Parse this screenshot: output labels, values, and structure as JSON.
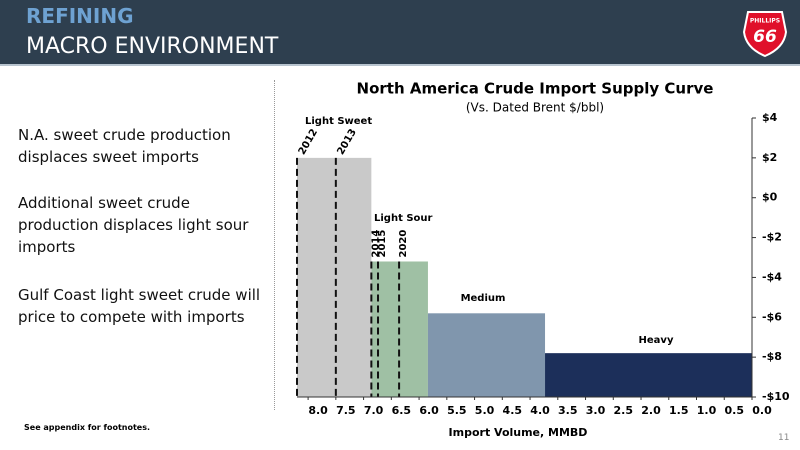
{
  "header": {
    "section": "REFINING",
    "title": "MACRO ENVIRONMENT",
    "logo_top": "PHILLIPS",
    "logo_number": "66"
  },
  "bullets": [
    "N.A. sweet crude production displaces sweet imports",
    "Additional sweet crude production displaces light sour imports",
    "Gulf Coast light sweet crude will price to compete with imports"
  ],
  "footnote": "See appendix for footnotes.",
  "page_number": "11",
  "chart_data": {
    "type": "supply_curve",
    "title": "North America Crude Import Supply Curve",
    "subtitle": "(Vs. Dated Brent $/bbl)",
    "x_label": "Import Volume, MMBD",
    "categories": [
      "Light Sweet",
      "Light Sour",
      "Medium",
      "Heavy"
    ],
    "bins": [
      8.2,
      6.86,
      5.84,
      3.73,
      0
    ],
    "values": [
      2,
      -3.2,
      -5.8,
      -7.8
    ],
    "colors": [
      "#c9c9c9",
      "#9fc0a4",
      "#8096ad",
      "#1c2f5a"
    ],
    "markers": [
      {
        "label": "2012",
        "x": 8.2
      },
      {
        "label": "2013",
        "x": 7.5
      },
      {
        "label": "2014",
        "x": 6.86
      },
      {
        "label": "2015",
        "x": 6.74
      },
      {
        "label": "2020",
        "x": 6.36
      }
    ],
    "xlim": [
      8.2,
      0
    ],
    "xticks": [
      {
        "value": 8,
        "label": "8.0"
      },
      {
        "value": 7.5,
        "label": "7.5"
      },
      {
        "value": 7,
        "label": "7.0"
      },
      {
        "value": 6.5,
        "label": "6.5"
      },
      {
        "value": 6,
        "label": "6.0"
      },
      {
        "value": 5.5,
        "label": "5.5"
      },
      {
        "value": 5,
        "label": "5.0"
      },
      {
        "value": 4.5,
        "label": "4.5"
      },
      {
        "value": 4,
        "label": "4.0"
      },
      {
        "value": 3.5,
        "label": "3.5"
      },
      {
        "value": 3,
        "label": "3.0"
      },
      {
        "value": 2.5,
        "label": "2.5"
      },
      {
        "value": 2,
        "label": "2.0"
      },
      {
        "value": 1.5,
        "label": "1.5"
      },
      {
        "value": 1,
        "label": "1.0"
      },
      {
        "value": 0.5,
        "label": "0.5"
      },
      {
        "value": 0,
        "label": "0.0"
      }
    ],
    "ylim": [
      -10,
      4
    ],
    "yticks": [
      {
        "value": 4,
        "label": "$4"
      },
      {
        "value": 2,
        "label": "$2"
      },
      {
        "value": 0,
        "label": "$0"
      },
      {
        "value": -2,
        "label": "-$2"
      },
      {
        "value": -4,
        "label": "-$4"
      },
      {
        "value": -6,
        "label": "-$6"
      },
      {
        "value": -8,
        "label": "-$8"
      },
      {
        "value": -10,
        "label": "-$10"
      }
    ]
  }
}
